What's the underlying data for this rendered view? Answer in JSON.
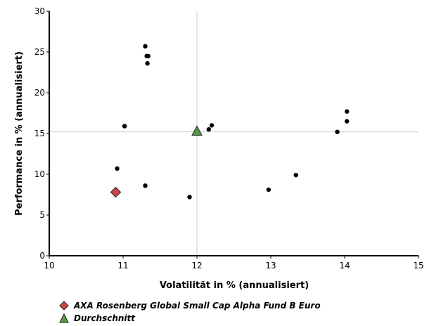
{
  "chart_data": {
    "type": "scatter",
    "xlabel": "Volatilität in % (annualisiert)",
    "ylabel": "Performance in % (annualisiert)",
    "xlim": [
      10,
      15
    ],
    "ylim": [
      0,
      30
    ],
    "xticks": [
      "10",
      "11",
      "12",
      "13",
      "14",
      "15"
    ],
    "yticks": [
      "0",
      "5",
      "10",
      "15",
      "20",
      "25",
      "30"
    ],
    "reference_lines": {
      "x": 12.0,
      "y": 15.2
    },
    "series": [
      {
        "name": "",
        "marker": "circle",
        "color": "#000000",
        "points": [
          {
            "x": 11.3,
            "y": 25.7
          },
          {
            "x": 11.34,
            "y": 24.5
          },
          {
            "x": 11.32,
            "y": 24.5
          },
          {
            "x": 11.33,
            "y": 23.6
          },
          {
            "x": 11.02,
            "y": 15.9
          },
          {
            "x": 10.92,
            "y": 10.7
          },
          {
            "x": 11.3,
            "y": 8.6
          },
          {
            "x": 11.9,
            "y": 7.2
          },
          {
            "x": 12.2,
            "y": 16.0
          },
          {
            "x": 12.16,
            "y": 15.5
          },
          {
            "x": 12.97,
            "y": 8.1
          },
          {
            "x": 13.34,
            "y": 9.9
          },
          {
            "x": 13.9,
            "y": 15.2
          },
          {
            "x": 14.03,
            "y": 17.7
          },
          {
            "x": 14.03,
            "y": 16.5
          }
        ]
      },
      {
        "name": "AXA Rosenberg Global Small Cap Alpha Fund B Euro",
        "marker": "diamond",
        "color": "#cc4444",
        "points": [
          {
            "x": 10.9,
            "y": 7.8
          }
        ]
      },
      {
        "name": "Durchschnitt",
        "marker": "triangle",
        "color": "#559944",
        "points": [
          {
            "x": 12.0,
            "y": 15.3
          }
        ]
      }
    ],
    "grid": false,
    "legend_position": "bottom-left"
  },
  "legend": {
    "fund_label": "AXA Rosenberg Global Small Cap Alpha Fund B Euro",
    "average_label": "Durchschnitt"
  }
}
